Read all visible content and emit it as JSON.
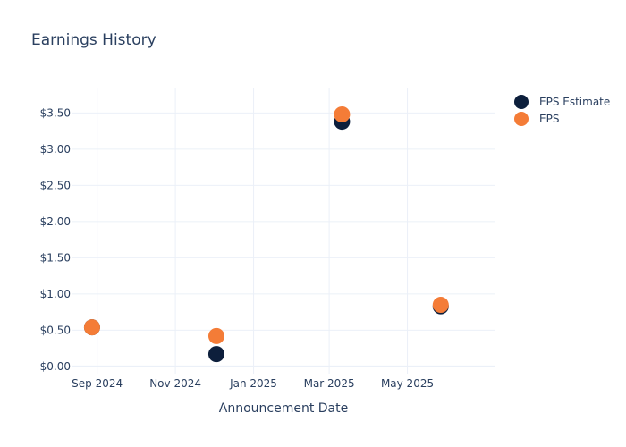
{
  "chart_data": {
    "type": "scatter",
    "title": "Earnings History",
    "xlabel": "Announcement Date",
    "ylabel": "",
    "x_ticks": [
      {
        "label": "Sep 2024",
        "date": "2024-09-01"
      },
      {
        "label": "Nov 2024",
        "date": "2024-11-01"
      },
      {
        "label": "Jan 2025",
        "date": "2025-01-01"
      },
      {
        "label": "Mar 2025",
        "date": "2025-03-01"
      },
      {
        "label": "May 2025",
        "date": "2025-05-01"
      }
    ],
    "y_ticks": [
      "$0.00",
      "$0.50",
      "$1.00",
      "$1.50",
      "$2.00",
      "$2.50",
      "$3.00",
      "$3.50"
    ],
    "xlim": [
      "2024-08-12",
      "2025-07-08"
    ],
    "ylim": [
      -0.1,
      3.85
    ],
    "grid": true,
    "legend_position": "top-right",
    "series": [
      {
        "name": "EPS Estimate",
        "color": "#0d1f3c",
        "points": [
          {
            "x": "2024-08-28",
            "y": 0.54
          },
          {
            "x": "2024-12-03",
            "y": 0.17
          },
          {
            "x": "2025-03-11",
            "y": 3.38
          },
          {
            "x": "2025-05-27",
            "y": 0.83
          }
        ]
      },
      {
        "name": "EPS",
        "color": "#f47c37",
        "points": [
          {
            "x": "2024-08-28",
            "y": 0.54
          },
          {
            "x": "2024-12-03",
            "y": 0.42
          },
          {
            "x": "2025-03-11",
            "y": 3.48
          },
          {
            "x": "2025-05-27",
            "y": 0.85
          }
        ]
      }
    ]
  }
}
